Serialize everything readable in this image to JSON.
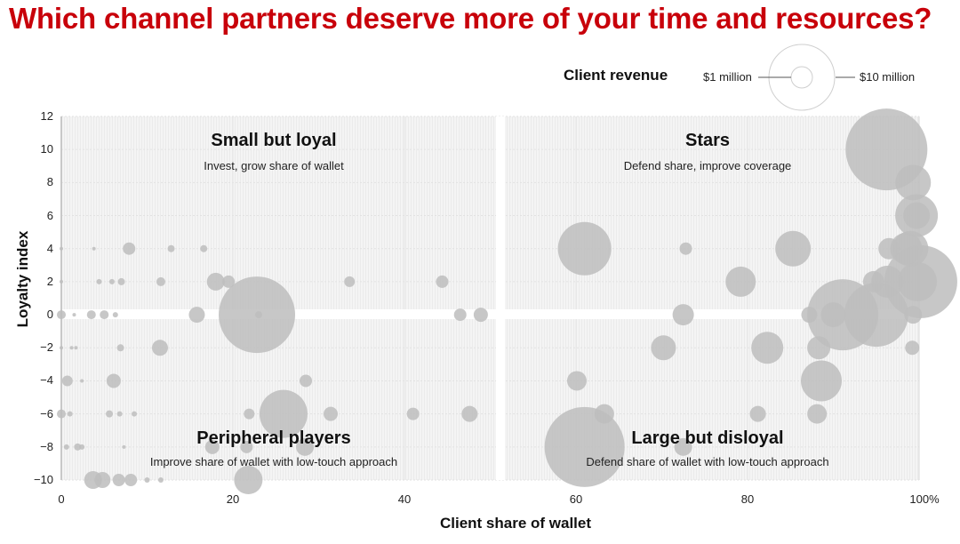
{
  "title": "Which channel partners deserve more of your time and resources?",
  "legend": {
    "label": "Client revenue",
    "small": "$1 million",
    "large": "$10 million"
  },
  "colors": {
    "title": "#c8000a",
    "bubble": "#bdbdbd",
    "plot_bg": "#f2f2f2",
    "divider": "#ffffff"
  },
  "quadrants": {
    "top_left": {
      "title": "Small but loyal",
      "subtitle": "Invest, grow share of wallet"
    },
    "top_right": {
      "title": "Stars",
      "subtitle": "Defend share, improve coverage"
    },
    "bottom_left": {
      "title": "Peripheral players",
      "subtitle": "Improve share of wallet with low-touch approach"
    },
    "bottom_right": {
      "title": "Large but disloyal",
      "subtitle": "Defend share of wallet with low-touch approach"
    }
  },
  "axes": {
    "x_title": "Client share of wallet",
    "y_title": "Loyalty index",
    "x_ticks": [
      "0",
      "20",
      "40",
      "60",
      "80",
      "100%"
    ],
    "y_ticks": [
      "12",
      "10",
      "8",
      "6",
      "4",
      "2",
      "0",
      "−2",
      "−4",
      "−6",
      "−8",
      "−10"
    ]
  },
  "chart_data": {
    "type": "scatter",
    "subtype": "bubble",
    "title": "Which channel partners deserve more of your time and resources?",
    "xlabel": "Client share of wallet",
    "ylabel": "Loyalty index",
    "xlim": [
      0,
      100
    ],
    "ylim": [
      -10,
      12
    ],
    "x_unit": "%",
    "size_label": "Client revenue",
    "size_legend": [
      "$1 million",
      "$10 million"
    ],
    "grid": true,
    "quadrant_split": {
      "x": 51,
      "y": 0
    },
    "points": [
      {
        "x": 0,
        "y": 0,
        "r": 5
      },
      {
        "x": 1.5,
        "y": 0,
        "r": 2
      },
      {
        "x": 3.5,
        "y": 0,
        "r": 5
      },
      {
        "x": 5,
        "y": 0,
        "r": 5
      },
      {
        "x": 6.3,
        "y": 0,
        "r": 3
      },
      {
        "x": 15.8,
        "y": 0,
        "r": 9
      },
      {
        "x": 22.8,
        "y": 0,
        "r": 43
      },
      {
        "x": 23,
        "y": 0,
        "r": 4
      },
      {
        "x": 46.5,
        "y": 0,
        "r": 7
      },
      {
        "x": 48.9,
        "y": 0,
        "r": 8
      },
      {
        "x": 0,
        "y": 2,
        "r": 2
      },
      {
        "x": 4.4,
        "y": 2,
        "r": 3
      },
      {
        "x": 5.9,
        "y": 2,
        "r": 3
      },
      {
        "x": 7,
        "y": 2,
        "r": 4
      },
      {
        "x": 11.6,
        "y": 2,
        "r": 5
      },
      {
        "x": 18,
        "y": 2,
        "r": 10
      },
      {
        "x": 19.5,
        "y": 2,
        "r": 7
      },
      {
        "x": 33.6,
        "y": 2,
        "r": 6
      },
      {
        "x": 44.4,
        "y": 2,
        "r": 7
      },
      {
        "x": 0,
        "y": 4,
        "r": 2
      },
      {
        "x": 3.8,
        "y": 4,
        "r": 2
      },
      {
        "x": 7.9,
        "y": 4,
        "r": 7
      },
      {
        "x": 12.8,
        "y": 4,
        "r": 4
      },
      {
        "x": 16.6,
        "y": 4,
        "r": 4
      },
      {
        "x": 0,
        "y": -2,
        "r": 2
      },
      {
        "x": 1.2,
        "y": -2,
        "r": 2
      },
      {
        "x": 1.7,
        "y": -2,
        "r": 2
      },
      {
        "x": 6.9,
        "y": -2,
        "r": 4
      },
      {
        "x": 11.5,
        "y": -2,
        "r": 9
      },
      {
        "x": 0.7,
        "y": -4,
        "r": 6
      },
      {
        "x": 2.4,
        "y": -4,
        "r": 2
      },
      {
        "x": 6.1,
        "y": -4,
        "r": 8
      },
      {
        "x": 28.5,
        "y": -4,
        "r": 7
      },
      {
        "x": 0,
        "y": -6,
        "r": 5
      },
      {
        "x": 1,
        "y": -6,
        "r": 3
      },
      {
        "x": 5.6,
        "y": -6,
        "r": 4
      },
      {
        "x": 6.8,
        "y": -6,
        "r": 3
      },
      {
        "x": 8.5,
        "y": -6,
        "r": 3
      },
      {
        "x": 21.9,
        "y": -6,
        "r": 6
      },
      {
        "x": 25.9,
        "y": -6,
        "r": 27
      },
      {
        "x": 31.4,
        "y": -6,
        "r": 8
      },
      {
        "x": 41,
        "y": -6,
        "r": 7
      },
      {
        "x": 47.6,
        "y": -6,
        "r": 9
      },
      {
        "x": 0.6,
        "y": -8,
        "r": 3
      },
      {
        "x": 1.9,
        "y": -8,
        "r": 4
      },
      {
        "x": 2.4,
        "y": -8,
        "r": 3
      },
      {
        "x": 7.3,
        "y": -8,
        "r": 2
      },
      {
        "x": 17.6,
        "y": -8,
        "r": 8
      },
      {
        "x": 21.6,
        "y": -8,
        "r": 7
      },
      {
        "x": 28.4,
        "y": -8,
        "r": 10
      },
      {
        "x": 3.7,
        "y": -10,
        "r": 10
      },
      {
        "x": 4.8,
        "y": -10,
        "r": 9
      },
      {
        "x": 6.7,
        "y": -10,
        "r": 7
      },
      {
        "x": 8.1,
        "y": -10,
        "r": 7
      },
      {
        "x": 10,
        "y": -10,
        "r": 3
      },
      {
        "x": 11.6,
        "y": -10,
        "r": 3
      },
      {
        "x": 21.8,
        "y": -10,
        "r": 16
      },
      {
        "x": 61,
        "y": 4,
        "r": 30
      },
      {
        "x": 72.8,
        "y": 4,
        "r": 7
      },
      {
        "x": 85.3,
        "y": 4,
        "r": 20
      },
      {
        "x": 79.2,
        "y": 2,
        "r": 17
      },
      {
        "x": 72.5,
        "y": 0,
        "r": 12
      },
      {
        "x": 87.2,
        "y": 0,
        "r": 9
      },
      {
        "x": 91.1,
        "y": 0,
        "r": 40
      },
      {
        "x": 95,
        "y": 0,
        "r": 36
      },
      {
        "x": 90,
        "y": 0,
        "r": 14
      },
      {
        "x": 99.3,
        "y": 0,
        "r": 10
      },
      {
        "x": 94.7,
        "y": 2,
        "r": 12
      },
      {
        "x": 96.3,
        "y": 2,
        "r": 18
      },
      {
        "x": 100.2,
        "y": 2,
        "r": 41
      },
      {
        "x": 99.8,
        "y": 2,
        "r": 22
      },
      {
        "x": 96.5,
        "y": 4,
        "r": 12
      },
      {
        "x": 98.5,
        "y": 4,
        "r": 18
      },
      {
        "x": 99,
        "y": 4,
        "r": 20
      },
      {
        "x": 99.7,
        "y": 6,
        "r": 24
      },
      {
        "x": 99.7,
        "y": 6,
        "r": 15
      },
      {
        "x": 99.3,
        "y": 8,
        "r": 20
      },
      {
        "x": 96.2,
        "y": 10,
        "r": 46
      },
      {
        "x": 70.2,
        "y": -2,
        "r": 14
      },
      {
        "x": 82.3,
        "y": -2,
        "r": 18
      },
      {
        "x": 88.3,
        "y": -2,
        "r": 13
      },
      {
        "x": 99.2,
        "y": -2,
        "r": 8
      },
      {
        "x": 60.1,
        "y": -4,
        "r": 11
      },
      {
        "x": 88.6,
        "y": -4,
        "r": 23
      },
      {
        "x": 63.3,
        "y": -6,
        "r": 11
      },
      {
        "x": 81.2,
        "y": -6,
        "r": 9
      },
      {
        "x": 88.1,
        "y": -6,
        "r": 11
      },
      {
        "x": 61,
        "y": -8,
        "r": 45
      },
      {
        "x": 72.5,
        "y": -8,
        "r": 10
      }
    ]
  }
}
